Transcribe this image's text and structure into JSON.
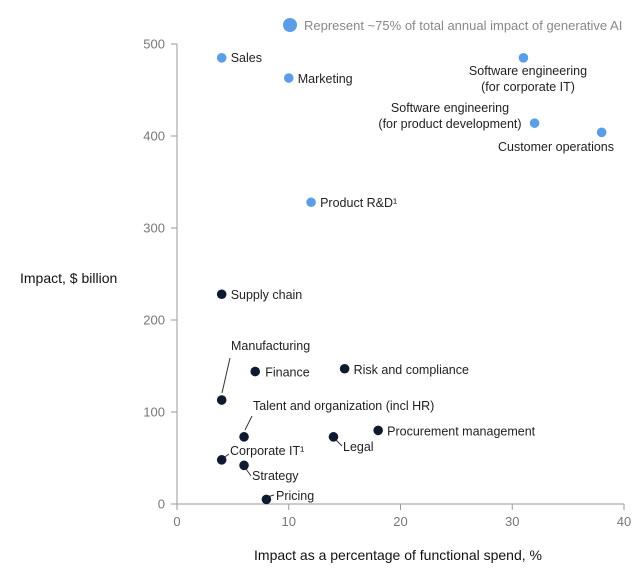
{
  "chart_data": {
    "type": "scatter",
    "xlabel": "Impact as a percentage of functional spend, %",
    "ylabel": "Impact, $ billion",
    "xlim": [
      0,
      40
    ],
    "ylim": [
      0,
      500
    ],
    "xticks": [
      0,
      10,
      20,
      30,
      40
    ],
    "yticks": [
      0,
      100,
      200,
      300,
      400,
      500
    ],
    "legend": {
      "label": "Represent ~75% of total annual impact of generative AI",
      "color": "#5b9ee6",
      "placement": "top-right"
    },
    "colors": {
      "highlight": "#5b9ee6",
      "other": "#0f1a30"
    },
    "points": [
      {
        "label": "Sales",
        "x": 4,
        "y": 485,
        "highlight": true
      },
      {
        "label": "Marketing",
        "x": 10,
        "y": 463,
        "highlight": true
      },
      {
        "label": "Software engineering\n(for corporate IT)",
        "x": 31,
        "y": 485,
        "highlight": true
      },
      {
        "label": "Software engineering\n(for product development)",
        "x": 32,
        "y": 414,
        "highlight": true
      },
      {
        "label": "Customer operations",
        "x": 38,
        "y": 404,
        "highlight": true
      },
      {
        "label": "Product R&D¹",
        "x": 12,
        "y": 328,
        "highlight": true
      },
      {
        "label": "Supply chain",
        "x": 4,
        "y": 228,
        "highlight": false
      },
      {
        "label": "Manufacturing",
        "x": 4,
        "y": 113,
        "highlight": false
      },
      {
        "label": "Finance",
        "x": 7,
        "y": 144,
        "highlight": false
      },
      {
        "label": "Risk and compliance",
        "x": 15,
        "y": 147,
        "highlight": false
      },
      {
        "label": "Talent and organization (incl HR)",
        "x": 6,
        "y": 73,
        "highlight": false
      },
      {
        "label": "Procurement management",
        "x": 18,
        "y": 80,
        "highlight": false
      },
      {
        "label": "Legal",
        "x": 14,
        "y": 73,
        "highlight": false
      },
      {
        "label": "Corporate IT¹",
        "x": 4,
        "y": 48,
        "highlight": false
      },
      {
        "label": "Strategy",
        "x": 6,
        "y": 42,
        "highlight": false
      },
      {
        "label": "Pricing",
        "x": 8,
        "y": 5,
        "highlight": false
      }
    ]
  }
}
